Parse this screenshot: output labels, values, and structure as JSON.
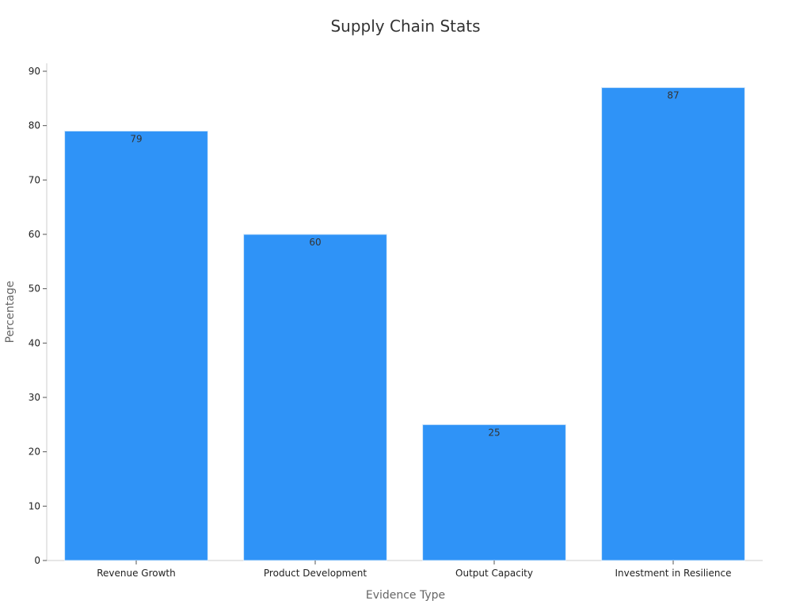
{
  "chart_data": {
    "type": "bar",
    "title": "Supply Chain Stats",
    "xlabel": "Evidence Type",
    "ylabel": "Percentage",
    "categories": [
      "Revenue Growth",
      "Product Development",
      "Output Capacity",
      "Investment in Resilience"
    ],
    "values": [
      79,
      60,
      25,
      87
    ],
    "ylim": [
      0,
      90
    ],
    "yticks": [
      0,
      10,
      20,
      30,
      40,
      50,
      60,
      70,
      80,
      90
    ],
    "grid": false,
    "data_labels": true,
    "colors": {
      "bar": "#2f93f7",
      "bar_edge": "#d6e9fb",
      "axis": "#cccccc",
      "title": "#333333",
      "axis_label": "#666666",
      "tick_label": "#222222",
      "data_label": "#333333"
    }
  }
}
